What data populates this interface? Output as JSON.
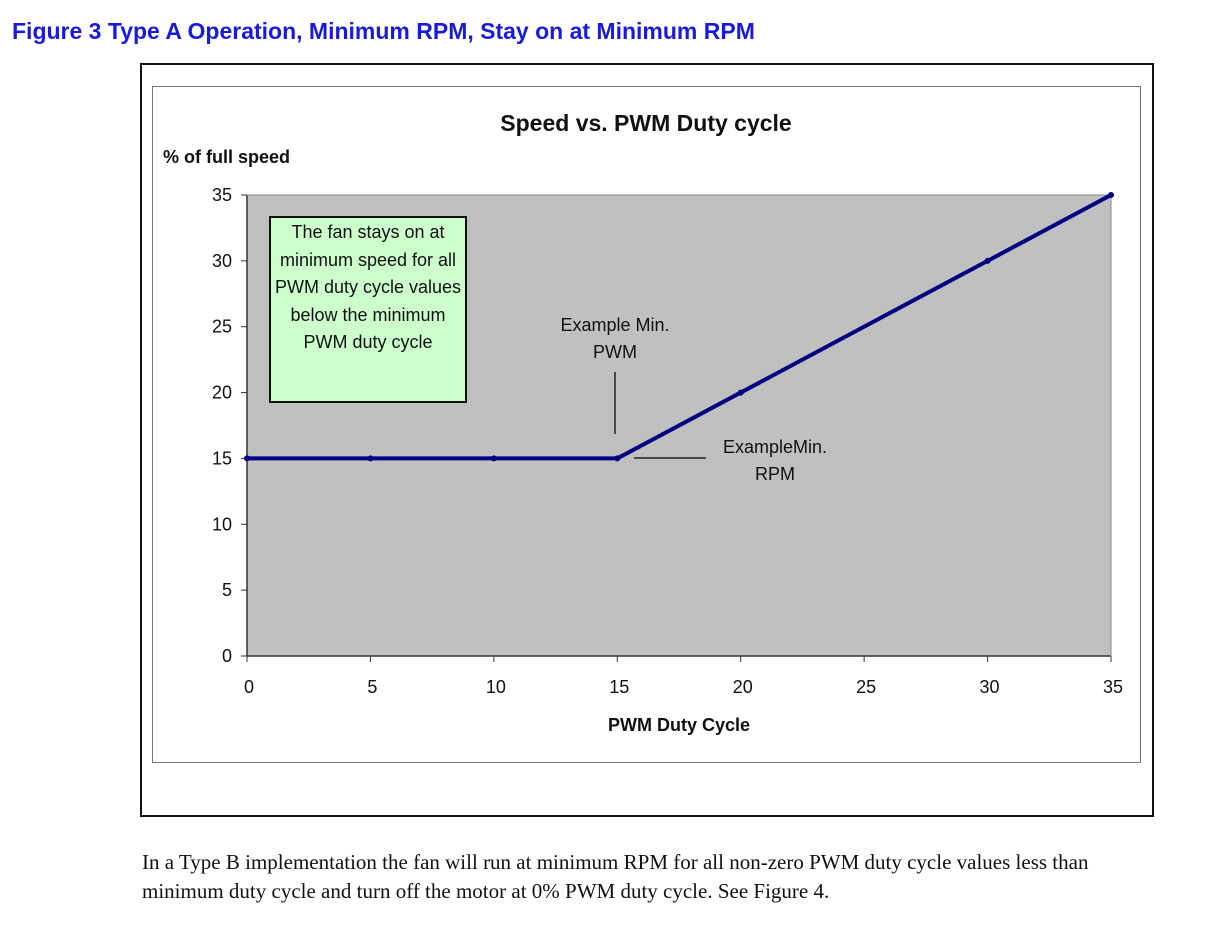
{
  "figure_title": "Figure 3 Type A Operation, Minimum RPM, Stay on at Minimum RPM",
  "body_text": "In a Type B implementation the fan will run at minimum RPM for all non-zero PWM duty cycle values less than minimum duty cycle and turn off the motor at 0% PWM duty cycle. See Figure 4.",
  "chart_data": {
    "type": "line",
    "title": "Speed vs. PWM Duty cycle",
    "xlabel": "PWM Duty Cycle",
    "ylabel": "% of full speed",
    "xlim": [
      0,
      35
    ],
    "ylim": [
      0,
      35
    ],
    "xticks": [
      "0",
      "5",
      "10",
      "15",
      "20",
      "25",
      "30",
      "35"
    ],
    "yticks": [
      "0",
      "5",
      "10",
      "15",
      "20",
      "25",
      "30",
      "35"
    ],
    "grid": false,
    "plot_background": "#c0c0c0",
    "series": [
      {
        "color": "#000080",
        "x": [
          0,
          5,
          10,
          15,
          20,
          30,
          35
        ],
        "y": [
          15,
          15,
          15,
          15,
          20,
          30,
          35
        ]
      }
    ],
    "annotations": {
      "note_box": "The fan stays on at minimum speed for all PWM duty cycle values below the minimum PWM duty cycle",
      "note_box_color": "#ccffcc",
      "min_pwm": {
        "line1": "Example Min.",
        "line2": "PWM"
      },
      "min_rpm": {
        "line1": "ExampleMin.",
        "line2": "RPM"
      }
    }
  }
}
